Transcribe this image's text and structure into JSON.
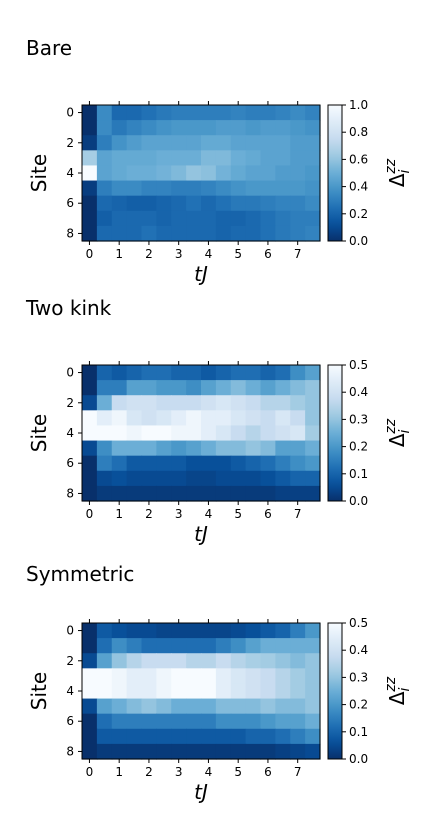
{
  "chart_data": [
    {
      "type": "heatmap",
      "title": "Bare",
      "xlabel": "tJ",
      "ylabel": "Site",
      "x_ticks": [
        "0",
        "1",
        "2",
        "3",
        "4",
        "5",
        "6",
        "7"
      ],
      "y_ticks": [
        "0",
        "2",
        "4",
        "6",
        "8"
      ],
      "colorbar_label": "Δ_i^zz",
      "colorbar_ticks": [
        "0.0",
        "0.2",
        "0.4",
        "0.6",
        "0.8",
        "1.0"
      ],
      "vmin": 0.0,
      "vmax": 1.0,
      "colormap": "Blues",
      "x": [
        0,
        0.5,
        1,
        1.5,
        2,
        2.5,
        3,
        3.5,
        4,
        4.5,
        5,
        5.5,
        6,
        6.5,
        7,
        7.5
      ],
      "sites": [
        0,
        1,
        2,
        3,
        4,
        5,
        6,
        7,
        8
      ],
      "values": [
        [
          0.0,
          0.35,
          0.22,
          0.22,
          0.25,
          0.28,
          0.3,
          0.3,
          0.3,
          0.3,
          0.32,
          0.3,
          0.3,
          0.32,
          0.35,
          0.32
        ],
        [
          0.0,
          0.35,
          0.28,
          0.32,
          0.35,
          0.38,
          0.4,
          0.4,
          0.4,
          0.42,
          0.42,
          0.4,
          0.42,
          0.42,
          0.4,
          0.38
        ],
        [
          0.05,
          0.3,
          0.38,
          0.42,
          0.45,
          0.45,
          0.45,
          0.45,
          0.48,
          0.48,
          0.45,
          0.45,
          0.45,
          0.45,
          0.42,
          0.42
        ],
        [
          0.65,
          0.45,
          0.48,
          0.48,
          0.48,
          0.5,
          0.5,
          0.5,
          0.55,
          0.55,
          0.5,
          0.48,
          0.45,
          0.45,
          0.42,
          0.42
        ],
        [
          1.0,
          0.45,
          0.48,
          0.5,
          0.5,
          0.52,
          0.55,
          0.6,
          0.58,
          0.52,
          0.48,
          0.45,
          0.45,
          0.42,
          0.42,
          0.4
        ],
        [
          0.05,
          0.3,
          0.35,
          0.35,
          0.32,
          0.32,
          0.3,
          0.3,
          0.32,
          0.35,
          0.38,
          0.4,
          0.4,
          0.4,
          0.4,
          0.38
        ],
        [
          0.0,
          0.22,
          0.2,
          0.18,
          0.18,
          0.2,
          0.22,
          0.25,
          0.22,
          0.25,
          0.28,
          0.28,
          0.3,
          0.32,
          0.32,
          0.35
        ],
        [
          0.0,
          0.18,
          0.22,
          0.22,
          0.22,
          0.2,
          0.22,
          0.22,
          0.22,
          0.2,
          0.2,
          0.22,
          0.25,
          0.28,
          0.3,
          0.3
        ],
        [
          0.0,
          0.22,
          0.22,
          0.22,
          0.25,
          0.22,
          0.22,
          0.22,
          0.22,
          0.2,
          0.22,
          0.22,
          0.25,
          0.28,
          0.3,
          0.32
        ]
      ]
    },
    {
      "type": "heatmap",
      "title": "Two kink",
      "xlabel": "tJ",
      "ylabel": "Site",
      "x_ticks": [
        "0",
        "1",
        "2",
        "3",
        "4",
        "5",
        "6",
        "7"
      ],
      "y_ticks": [
        "0",
        "2",
        "4",
        "6",
        "8"
      ],
      "colorbar_label": "Δ_i^zz",
      "colorbar_ticks": [
        "0.0",
        "0.1",
        "0.2",
        "0.3",
        "0.4",
        "0.5"
      ],
      "vmin": 0.0,
      "vmax": 0.5,
      "colormap": "Blues",
      "x": [
        0,
        0.5,
        1,
        1.5,
        2,
        2.5,
        3,
        3.5,
        4,
        4.5,
        5,
        5.5,
        6,
        6.5,
        7,
        7.5
      ],
      "sites": [
        0,
        1,
        2,
        3,
        4,
        5,
        6,
        7,
        8
      ],
      "values": [
        [
          0.0,
          0.1,
          0.08,
          0.1,
          0.12,
          0.12,
          0.1,
          0.1,
          0.08,
          0.1,
          0.12,
          0.12,
          0.1,
          0.12,
          0.18,
          0.22
        ],
        [
          0.0,
          0.15,
          0.15,
          0.22,
          0.22,
          0.2,
          0.2,
          0.18,
          0.22,
          0.25,
          0.28,
          0.25,
          0.22,
          0.25,
          0.28,
          0.3
        ],
        [
          0.05,
          0.25,
          0.38,
          0.4,
          0.4,
          0.38,
          0.38,
          0.38,
          0.4,
          0.42,
          0.4,
          0.38,
          0.35,
          0.35,
          0.32,
          0.3
        ],
        [
          0.5,
          0.45,
          0.48,
          0.42,
          0.4,
          0.42,
          0.45,
          0.48,
          0.45,
          0.45,
          0.42,
          0.4,
          0.38,
          0.42,
          0.38,
          0.3
        ],
        [
          0.5,
          0.5,
          0.5,
          0.48,
          0.5,
          0.5,
          0.48,
          0.48,
          0.45,
          0.42,
          0.38,
          0.35,
          0.38,
          0.4,
          0.42,
          0.32
        ],
        [
          0.05,
          0.18,
          0.25,
          0.25,
          0.25,
          0.22,
          0.2,
          0.22,
          0.25,
          0.28,
          0.28,
          0.3,
          0.28,
          0.22,
          0.22,
          0.25
        ],
        [
          0.0,
          0.15,
          0.12,
          0.08,
          0.08,
          0.08,
          0.08,
          0.06,
          0.06,
          0.06,
          0.08,
          0.1,
          0.12,
          0.15,
          0.18,
          0.2
        ],
        [
          0.0,
          0.05,
          0.06,
          0.05,
          0.05,
          0.05,
          0.05,
          0.04,
          0.04,
          0.05,
          0.05,
          0.05,
          0.06,
          0.08,
          0.1,
          0.1
        ],
        [
          0.0,
          0.02,
          0.02,
          0.02,
          0.02,
          0.02,
          0.02,
          0.02,
          0.02,
          0.02,
          0.02,
          0.02,
          0.02,
          0.03,
          0.03,
          0.03
        ]
      ]
    },
    {
      "type": "heatmap",
      "title": "Symmetric",
      "xlabel": "tJ",
      "ylabel": "Site",
      "x_ticks": [
        "0",
        "1",
        "2",
        "3",
        "4",
        "5",
        "6",
        "7"
      ],
      "y_ticks": [
        "0",
        "2",
        "4",
        "6",
        "8"
      ],
      "colorbar_label": "Δ_i^zz",
      "colorbar_ticks": [
        "0.0",
        "0.1",
        "0.2",
        "0.3",
        "0.4",
        "0.5"
      ],
      "vmin": 0.0,
      "vmax": 0.5,
      "colormap": "Blues",
      "x": [
        0,
        0.5,
        1,
        1.5,
        2,
        2.5,
        3,
        3.5,
        4,
        4.5,
        5,
        5.5,
        6,
        6.5,
        7,
        7.5
      ],
      "sites": [
        0,
        1,
        2,
        3,
        4,
        5,
        6,
        7,
        8
      ],
      "values": [
        [
          0.0,
          0.08,
          0.06,
          0.05,
          0.05,
          0.04,
          0.04,
          0.04,
          0.04,
          0.04,
          0.05,
          0.06,
          0.08,
          0.1,
          0.15,
          0.2
        ],
        [
          0.0,
          0.12,
          0.18,
          0.15,
          0.12,
          0.12,
          0.12,
          0.12,
          0.12,
          0.15,
          0.18,
          0.22,
          0.25,
          0.25,
          0.25,
          0.25
        ],
        [
          0.05,
          0.22,
          0.3,
          0.35,
          0.38,
          0.38,
          0.38,
          0.35,
          0.35,
          0.38,
          0.35,
          0.33,
          0.32,
          0.3,
          0.28,
          0.3
        ],
        [
          0.5,
          0.5,
          0.48,
          0.45,
          0.45,
          0.48,
          0.5,
          0.5,
          0.5,
          0.45,
          0.42,
          0.4,
          0.38,
          0.35,
          0.32,
          0.3
        ],
        [
          0.5,
          0.5,
          0.48,
          0.45,
          0.45,
          0.48,
          0.5,
          0.5,
          0.5,
          0.45,
          0.42,
          0.4,
          0.38,
          0.35,
          0.32,
          0.3
        ],
        [
          0.05,
          0.22,
          0.25,
          0.28,
          0.3,
          0.28,
          0.25,
          0.25,
          0.25,
          0.28,
          0.28,
          0.28,
          0.3,
          0.28,
          0.28,
          0.3
        ],
        [
          0.0,
          0.12,
          0.15,
          0.15,
          0.15,
          0.15,
          0.15,
          0.15,
          0.15,
          0.18,
          0.18,
          0.18,
          0.2,
          0.22,
          0.22,
          0.25
        ],
        [
          0.0,
          0.08,
          0.08,
          0.08,
          0.08,
          0.08,
          0.08,
          0.08,
          0.08,
          0.08,
          0.08,
          0.1,
          0.1,
          0.12,
          0.15,
          0.18
        ],
        [
          0.0,
          0.02,
          0.02,
          0.02,
          0.02,
          0.02,
          0.02,
          0.02,
          0.02,
          0.02,
          0.02,
          0.02,
          0.02,
          0.03,
          0.04,
          0.05
        ]
      ]
    }
  ]
}
